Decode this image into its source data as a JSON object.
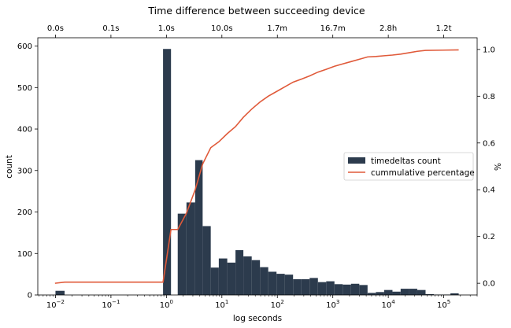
{
  "chart_data": {
    "type": "bar",
    "title": "Time difference between succeeding device",
    "xlabel": "log seconds",
    "ylabel": "count",
    "y2label": "%",
    "x_scale": "log",
    "xlim": [
      0.0048,
      400000
    ],
    "ylim": [
      0,
      620
    ],
    "y2lim": [
      -0.05,
      1.05
    ],
    "grid": false,
    "legend_position": "center-right",
    "colors": {
      "bars": "#2c3b4d",
      "line": "#e05a3a"
    },
    "x_tick_labels": [
      {
        "value": 0.01,
        "base": "10",
        "exp": "−2"
      },
      {
        "value": 0.1,
        "base": "10",
        "exp": "−1"
      },
      {
        "value": 1,
        "base": "10",
        "exp": "0"
      },
      {
        "value": 10,
        "base": "10",
        "exp": "1"
      },
      {
        "value": 100,
        "base": "10",
        "exp": "2"
      },
      {
        "value": 1000,
        "base": "10",
        "exp": "3"
      },
      {
        "value": 10000,
        "base": "10",
        "exp": "4"
      },
      {
        "value": 100000,
        "base": "10",
        "exp": "5"
      }
    ],
    "top_tick_labels": [
      {
        "value": 0.01,
        "label": "0.0s"
      },
      {
        "value": 0.1,
        "label": "0.1s"
      },
      {
        "value": 1,
        "label": "1.0s"
      },
      {
        "value": 10,
        "label": "10.0s"
      },
      {
        "value": 100,
        "label": "1.7m"
      },
      {
        "value": 1000,
        "label": "16.7m"
      },
      {
        "value": 10000,
        "label": "2.8h"
      },
      {
        "value": 100000,
        "label": "1.2t"
      }
    ],
    "y_ticks": [
      0,
      100,
      200,
      300,
      400,
      500,
      600
    ],
    "y2_ticks": [
      "0.0",
      "0.2",
      "0.4",
      "0.6",
      "0.8",
      "1.0"
    ],
    "series": [
      {
        "name": "timedeltas count",
        "type": "bar",
        "bins": [
          {
            "x0": 0.01,
            "x1": 0.0146,
            "count": 10
          },
          {
            "x0": 0.87,
            "x1": 1.21,
            "count": 593
          },
          {
            "x0": 1.6,
            "x1": 2.3,
            "count": 196
          },
          {
            "x0": 2.3,
            "x1": 3.3,
            "count": 223
          },
          {
            "x0": 3.3,
            "x1": 4.5,
            "count": 325
          },
          {
            "x0": 4.5,
            "x1": 6.3,
            "count": 166
          },
          {
            "x0": 6.3,
            "x1": 8.8,
            "count": 66
          },
          {
            "x0": 8.8,
            "x1": 12.5,
            "count": 88
          },
          {
            "x0": 12.5,
            "x1": 17.6,
            "count": 78
          },
          {
            "x0": 17.6,
            "x1": 24.4,
            "count": 108
          },
          {
            "x0": 24.4,
            "x1": 34.5,
            "count": 93
          },
          {
            "x0": 34.5,
            "x1": 48.6,
            "count": 84
          },
          {
            "x0": 48.6,
            "x1": 68.5,
            "count": 67
          },
          {
            "x0": 68.5,
            "x1": 96.6,
            "count": 56
          },
          {
            "x0": 96.6,
            "x1": 136,
            "count": 51
          },
          {
            "x0": 136,
            "x1": 192,
            "count": 49
          },
          {
            "x0": 192,
            "x1": 271,
            "count": 38
          },
          {
            "x0": 271,
            "x1": 382,
            "count": 38
          },
          {
            "x0": 382,
            "x1": 539,
            "count": 41
          },
          {
            "x0": 539,
            "x1": 760,
            "count": 31
          },
          {
            "x0": 760,
            "x1": 1070,
            "count": 33
          },
          {
            "x0": 1070,
            "x1": 1510,
            "count": 26
          },
          {
            "x0": 1510,
            "x1": 2130,
            "count": 25
          },
          {
            "x0": 2130,
            "x1": 3000,
            "count": 27
          },
          {
            "x0": 3000,
            "x1": 4230,
            "count": 24
          },
          {
            "x0": 4230,
            "x1": 5970,
            "count": 5
          },
          {
            "x0": 5970,
            "x1": 8420,
            "count": 7
          },
          {
            "x0": 8420,
            "x1": 11900,
            "count": 12
          },
          {
            "x0": 11900,
            "x1": 16700,
            "count": 8
          },
          {
            "x0": 16700,
            "x1": 23600,
            "count": 15
          },
          {
            "x0": 23600,
            "x1": 33300,
            "count": 15
          },
          {
            "x0": 33300,
            "x1": 47000,
            "count": 12
          },
          {
            "x0": 47000,
            "x1": 66300,
            "count": 2
          },
          {
            "x0": 66300,
            "x1": 93500,
            "count": 1
          },
          {
            "x0": 93500,
            "x1": 132000,
            "count": 1
          },
          {
            "x0": 132000,
            "x1": 186000,
            "count": 4
          }
        ]
      },
      {
        "name": "cummulative percentage",
        "type": "line",
        "axis": "right",
        "points": [
          {
            "x": 0.0098,
            "y": 0.0
          },
          {
            "x": 0.0146,
            "y": 0.005
          },
          {
            "x": 0.87,
            "y": 0.005
          },
          {
            "x": 1.21,
            "y": 0.23
          },
          {
            "x": 1.6,
            "y": 0.23
          },
          {
            "x": 2.3,
            "y": 0.3
          },
          {
            "x": 3.3,
            "y": 0.4
          },
          {
            "x": 4.5,
            "y": 0.51
          },
          {
            "x": 6.3,
            "y": 0.58
          },
          {
            "x": 8.8,
            "y": 0.605
          },
          {
            "x": 12.5,
            "y": 0.64
          },
          {
            "x": 17.6,
            "y": 0.67
          },
          {
            "x": 24.4,
            "y": 0.71
          },
          {
            "x": 34.5,
            "y": 0.745
          },
          {
            "x": 48.6,
            "y": 0.775
          },
          {
            "x": 68.5,
            "y": 0.8
          },
          {
            "x": 96.6,
            "y": 0.82
          },
          {
            "x": 136,
            "y": 0.84
          },
          {
            "x": 192,
            "y": 0.86
          },
          {
            "x": 271,
            "y": 0.873
          },
          {
            "x": 382,
            "y": 0.887
          },
          {
            "x": 539,
            "y": 0.903
          },
          {
            "x": 760,
            "y": 0.915
          },
          {
            "x": 1070,
            "y": 0.928
          },
          {
            "x": 1510,
            "y": 0.938
          },
          {
            "x": 2130,
            "y": 0.948
          },
          {
            "x": 3000,
            "y": 0.958
          },
          {
            "x": 4230,
            "y": 0.968
          },
          {
            "x": 5970,
            "y": 0.97
          },
          {
            "x": 8420,
            "y": 0.973
          },
          {
            "x": 11900,
            "y": 0.976
          },
          {
            "x": 16700,
            "y": 0.98
          },
          {
            "x": 23600,
            "y": 0.986
          },
          {
            "x": 33300,
            "y": 0.992
          },
          {
            "x": 47000,
            "y": 0.996
          },
          {
            "x": 93500,
            "y": 0.997
          },
          {
            "x": 186000,
            "y": 0.998
          }
        ]
      }
    ]
  }
}
